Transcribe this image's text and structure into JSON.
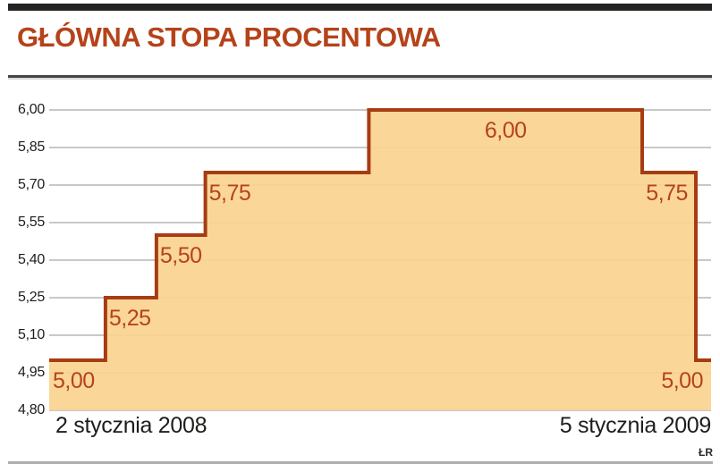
{
  "header": {
    "title": "GŁÓWNA STOPA PROCENTOWA"
  },
  "chart_data": {
    "type": "area",
    "subtype": "step",
    "title": "GŁÓWNA STOPA PROCENTOWA",
    "xlabel": "",
    "ylabel": "",
    "ylim": [
      4.8,
      6.0
    ],
    "grid": true,
    "legend": false,
    "y_ticks": [
      {
        "value": 6.0,
        "label": "6,00"
      },
      {
        "value": 5.85,
        "label": "5,85"
      },
      {
        "value": 5.7,
        "label": "5,70"
      },
      {
        "value": 5.55,
        "label": "5,55"
      },
      {
        "value": 5.4,
        "label": "5,40"
      },
      {
        "value": 5.25,
        "label": "5,25"
      },
      {
        "value": 5.1,
        "label": "5,10"
      },
      {
        "value": 4.95,
        "label": "4,95"
      },
      {
        "value": 4.8,
        "label": "4,80"
      }
    ],
    "x_axis_labels": {
      "start": "2 stycznia 2008",
      "end": "5 stycznia 2009"
    },
    "steps": [
      {
        "value": 5.0,
        "label": "5,00",
        "x_start": 0.0,
        "x_end": 0.085,
        "label_align": "start"
      },
      {
        "value": 5.25,
        "label": "5,25",
        "x_start": 0.085,
        "x_end": 0.162,
        "label_align": "start"
      },
      {
        "value": 5.5,
        "label": "5,50",
        "x_start": 0.162,
        "x_end": 0.236,
        "label_align": "start"
      },
      {
        "value": 5.75,
        "label": "5,75",
        "x_start": 0.236,
        "x_end": 0.483,
        "label_align": "start"
      },
      {
        "value": 6.0,
        "label": "6,00",
        "x_start": 0.483,
        "x_end": 0.896,
        "label_align": "center"
      },
      {
        "value": 5.75,
        "label": "5,75",
        "x_start": 0.896,
        "x_end": 0.977,
        "label_align": "end"
      },
      {
        "value": 5.0,
        "label": "5,00",
        "x_start": 0.977,
        "x_end": 1.0,
        "label_align": "end"
      }
    ],
    "credit": "ŁR",
    "colors": {
      "line": "#a73c13",
      "fill": "#fbd290",
      "value_label": "#b5431c",
      "grid": "#a6a6a6",
      "axis_text": "#1d1d1b",
      "title": "#b5431a",
      "top_bar": "#232321",
      "title_rule": "#454543",
      "bottom_rule": "#b0afae"
    }
  }
}
